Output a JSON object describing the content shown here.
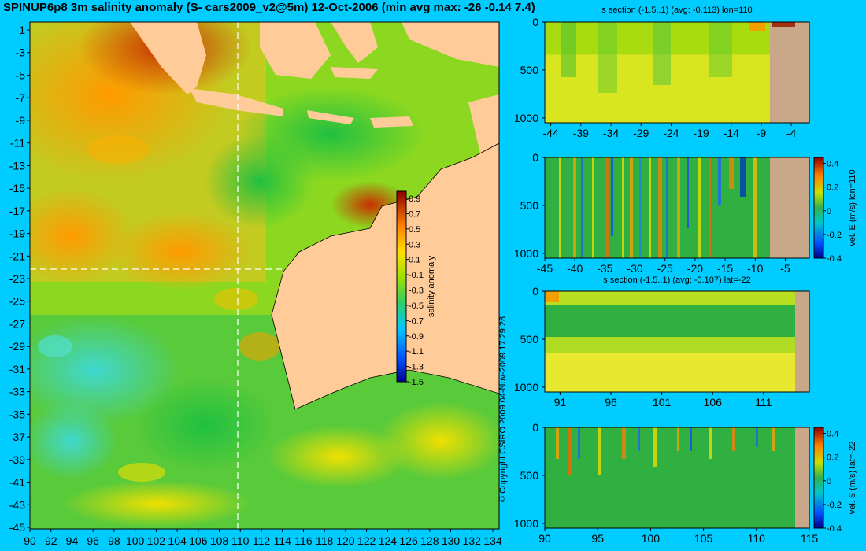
{
  "chart_data": [
    {
      "type": "heatmap",
      "panel": "map",
      "title": "SPINUP6p8 3m salinity anomaly (S- cars2009_v2@5m) 12-Oct-2006 (min avg max: -26 -0.14 7.4)",
      "x_ticks": [
        "90",
        "92",
        "94",
        "96",
        "98",
        "100",
        "102",
        "104",
        "106",
        "108",
        "110",
        "112",
        "114",
        "116",
        "118",
        "120",
        "122",
        "124",
        "126",
        "128",
        "130",
        "132",
        "134"
      ],
      "y_ticks": [
        "-1",
        "-3",
        "-5",
        "-7",
        "-9",
        "-11",
        "-13",
        "-15",
        "-17",
        "-19",
        "-21",
        "-23",
        "-25",
        "-27",
        "-29",
        "-31",
        "-33",
        "-35",
        "-37",
        "-39",
        "-41",
        "-43",
        "-45"
      ],
      "xlim": [
        90,
        135
      ],
      "ylim": [
        -45,
        0
      ],
      "section_lon": 110,
      "section_lat": -22,
      "colorbar": {
        "label": "salinity anomaly",
        "range": [
          -1.5,
          1.0
        ],
        "ticks": [
          "0.9",
          "0.7",
          "0.5",
          "0.3",
          "0.1",
          "-0.1",
          "-0.3",
          "-0.5",
          "-0.7",
          "-0.9",
          "-1.1",
          "-1.3",
          "-1.5"
        ]
      },
      "copyright": "© Copyright CSIRO 2009  04-Nov-2009 17:29:28"
    },
    {
      "type": "heatmap",
      "panel": "section-1",
      "title": "s section (-1.5..1) (avg: -0.113) lon=110",
      "x_ticks": [
        "-44",
        "-39",
        "-34",
        "-29",
        "-24",
        "-19",
        "-14",
        "-9",
        "-4"
      ],
      "y_ticks": [
        "0",
        "500",
        "1000"
      ],
      "xlim": [
        -45,
        -1
      ],
      "ylim": [
        1050,
        0
      ]
    },
    {
      "type": "heatmap",
      "panel": "section-2",
      "title": "",
      "x_ticks": [
        "-45",
        "-40",
        "-35",
        "-30",
        "-25",
        "-20",
        "-15",
        "-10",
        "-5"
      ],
      "y_ticks": [
        "0",
        "500",
        "1000"
      ],
      "xlim": [
        -45,
        -1
      ],
      "ylim": [
        1050,
        0
      ],
      "colorbar": {
        "label": "vel. E (m/s) lon=110",
        "range": [
          -0.4,
          0.45
        ],
        "ticks": [
          "0.4",
          "0.2",
          "0",
          "-0.2",
          "-0.4"
        ]
      }
    },
    {
      "type": "heatmap",
      "panel": "section-3",
      "title": "s section (-1.5..1) (avg: -0.107) lat=-22",
      "x_ticks": [
        "91",
        "96",
        "101",
        "106",
        "111"
      ],
      "y_ticks": [
        "0",
        "500",
        "1000"
      ],
      "xlim": [
        89.5,
        115.5
      ],
      "ylim": [
        1050,
        0
      ]
    },
    {
      "type": "heatmap",
      "panel": "section-4",
      "title": "",
      "x_ticks": [
        "90",
        "95",
        "100",
        "105",
        "110",
        "115"
      ],
      "y_ticks": [
        "0",
        "500",
        "1000"
      ],
      "xlim": [
        90,
        115
      ],
      "ylim": [
        1050,
        0
      ],
      "colorbar": {
        "label": "vel. S (m/s) lat=-22",
        "range": [
          -0.4,
          0.45
        ],
        "ticks": [
          "0.4",
          "0.2",
          "0",
          "-0.2",
          "-0.4"
        ]
      }
    }
  ]
}
